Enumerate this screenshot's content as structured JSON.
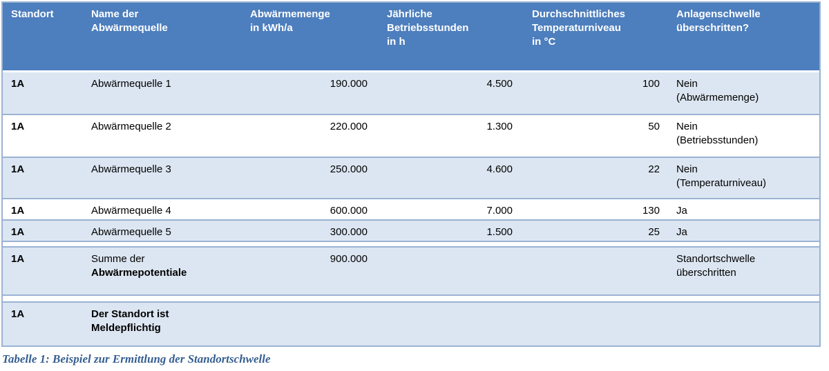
{
  "table": {
    "headers": [
      "Standort",
      "Name der\nAbwärmequelle",
      "Abwärmemenge\nin kWh/a",
      "Jährliche\nBetriebsstunden\nin h",
      "Durchschnittliches\nTemperaturniveau\nin °C",
      "Anlagenschwelle\nüberschritten?"
    ],
    "rows": [
      {
        "standort": "1A",
        "name": "Abwärmequelle 1",
        "menge": "190.000",
        "stunden": "4.500",
        "temp": "100",
        "anlagen": "Nein\n(Abwärmemenge)"
      },
      {
        "standort": "1A",
        "name": "Abwärmequelle 2",
        "menge": "220.000",
        "stunden": "1.300",
        "temp": "50",
        "anlagen": "Nein\n(Betriebsstunden)"
      },
      {
        "standort": "1A",
        "name": "Abwärmequelle 3",
        "menge": "250.000",
        "stunden": "4.600",
        "temp": "22",
        "anlagen": "Nein\n(Temperaturniveau)"
      },
      {
        "standort": "1A",
        "name": "Abwärmequelle 4",
        "menge": "600.000",
        "stunden": "7.000",
        "temp": "130",
        "anlagen": "Ja"
      },
      {
        "standort": "1A",
        "name": "Abwärmequelle 5",
        "menge": "300.000",
        "stunden": "1.500",
        "temp": "25",
        "anlagen": "Ja"
      }
    ],
    "summary_row": {
      "standort": "1A",
      "name_line1": "Summe der",
      "name_line2": "Abwärmepotentiale",
      "menge": "900.000",
      "anlagen": "Standortschwelle\nüberschritten"
    },
    "result_row": {
      "standort": "1A",
      "name": "Der Standort ist\nMeldepflichtig"
    }
  },
  "caption": "Tabelle 1: Beispiel zur Ermittlung der Standortschwelle",
  "colors": {
    "header_bg": "#4d7ebd",
    "row_alt_bg": "#dce6f2",
    "border": "#9ab2d3",
    "caption_text": "#365f91"
  }
}
